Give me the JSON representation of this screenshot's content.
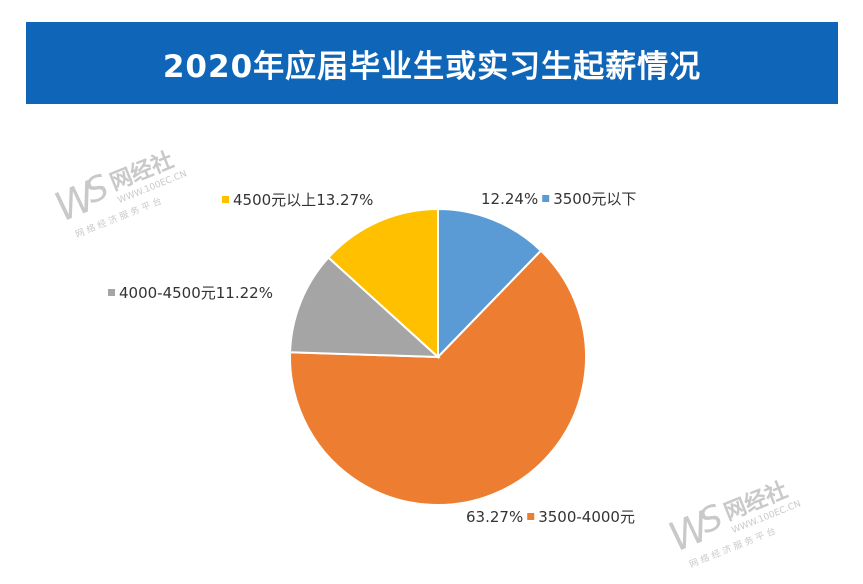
{
  "title": "2020年应届毕业生或实习生起薪情况",
  "watermark": {
    "brand": "网经社",
    "url": "WWW.100EC.CN",
    "slogan": "网 络 经 济 服 务 平 台"
  },
  "chart_data": {
    "type": "pie",
    "title": "2020年应届毕业生或实习生起薪情况",
    "slices": [
      {
        "label": "3500元以下",
        "value": 12.24,
        "display": "12.24%",
        "color": "#5b9bd5"
      },
      {
        "label": "3500-4000元",
        "value": 63.27,
        "display": "63.27%",
        "color": "#ed7d31"
      },
      {
        "label": "4000-4500元",
        "value": 11.22,
        "display": "11.22%",
        "color": "#a5a5a5"
      },
      {
        "label": "4500元以上",
        "value": 13.27,
        "display": "13.27%",
        "color": "#ffc000"
      }
    ],
    "start_angle": "12 o'clock",
    "direction": "clockwise"
  }
}
